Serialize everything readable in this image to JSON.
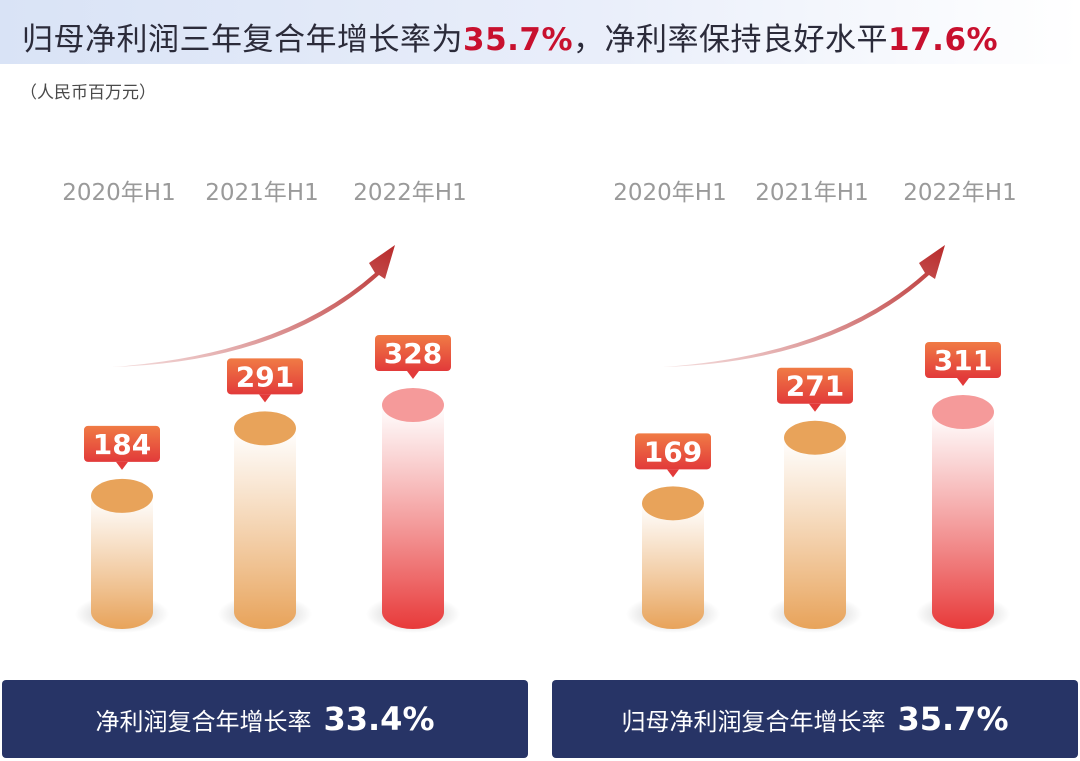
{
  "title": {
    "part1": "归母净利润三年复合年增长率为",
    "highlight1": "35.7%",
    "part2": "，净利率保持良好水平",
    "highlight2": "17.6%"
  },
  "unit": "（人民币百万元）",
  "chart_data": [
    {
      "type": "bar",
      "categories": [
        "2020年H1",
        "2021年H1",
        "2022年H1"
      ],
      "values": [
        184,
        291,
        328
      ],
      "footer_label": "净利润复合年增长率",
      "footer_value": "33.4%"
    },
    {
      "type": "bar",
      "categories": [
        "2020年H1",
        "2021年H1",
        "2022年H1"
      ],
      "values": [
        169,
        271,
        311
      ],
      "footer_label": "归母净利润复合年增长率",
      "footer_value": "35.7%"
    }
  ],
  "colors": {
    "orange": "#e8a35a",
    "red": "#e83a3a",
    "arrow": "#b82a2a",
    "label_box": "#e8473d",
    "footer_bg": "#273466",
    "highlight": "#c8102e"
  }
}
